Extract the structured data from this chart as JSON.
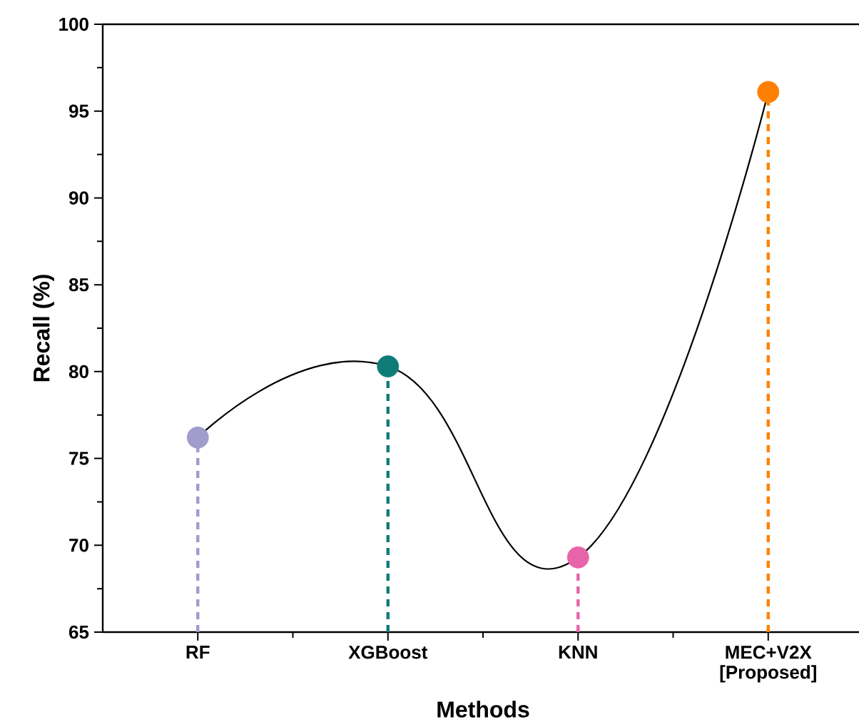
{
  "chart_data": {
    "type": "line",
    "xlabel": "Methods",
    "ylabel": "Recall (%)",
    "categories": [
      "RF",
      "XGBoost",
      "KNN",
      "MEC+V2X\n[Proposed]"
    ],
    "series": [
      {
        "color": "#000000",
        "values": [
          76.2,
          80.3,
          69.3,
          96.1
        ],
        "line_style": "solid"
      },
      {
        "type": "lollipop",
        "colors": [
          "#a09ccc",
          "#0f7b78",
          "#e864a8",
          "#ff8000"
        ],
        "values": [
          76.2,
          80.3,
          69.3,
          96.1
        ],
        "marker": "circle",
        "line_style": "dashed"
      }
    ],
    "ylim": [
      65,
      100
    ],
    "yticks": [
      65,
      {
        "value": 67.5,
        "label": null
      },
      70,
      {
        "value": 72.5,
        "label": null
      },
      75,
      {
        "value": 77.5,
        "label": null
      },
      80,
      {
        "value": 82.5,
        "label": null
      },
      85,
      {
        "value": 87.5,
        "label": null
      },
      90,
      {
        "value": 92.5,
        "label": null
      },
      95,
      {
        "value": 97.5,
        "label": null
      },
      100
    ],
    "grid": false
  }
}
